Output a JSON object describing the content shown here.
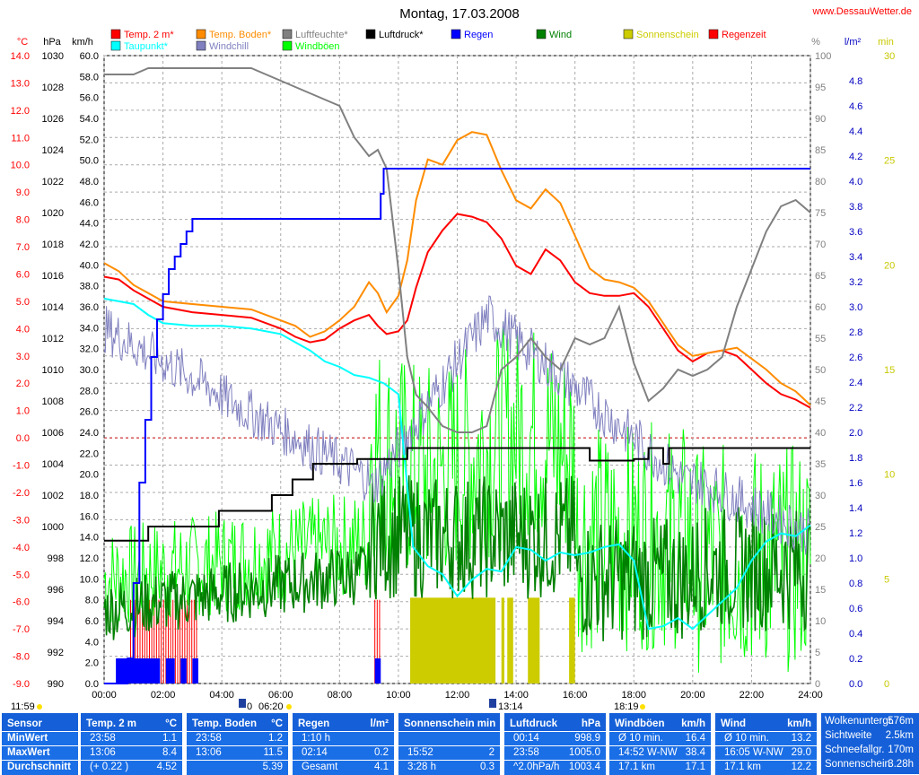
{
  "title": "Montag, 17.03.2008",
  "site": "www.DessauWetter.de",
  "legend": [
    {
      "label": "Temp. 2 m*",
      "color": "#ff0000"
    },
    {
      "label": "Temp. Boden*",
      "color": "#ff8c00"
    },
    {
      "label": "Luftfeuchte*",
      "color": "#808080"
    },
    {
      "label": "Taupunkt*",
      "color": "#00ffff"
    },
    {
      "label": "Windchill",
      "color": "#8080c0"
    },
    {
      "label": "Windböen",
      "color": "#00ff00"
    },
    {
      "label": "Luftdruck*",
      "color": "#000000"
    },
    {
      "label": "Regen",
      "color": "#0000ff"
    },
    {
      "label": "Wind",
      "color": "#008000"
    },
    {
      "label": "Sonnenschein",
      "color": "#cccc00"
    },
    {
      "label": "Regenzeit",
      "color": "#ff0000"
    }
  ],
  "axes_units": {
    "temp": "°C",
    "pressure": "hPa",
    "wind": "km/h",
    "humidity": "%",
    "rain": "l/m²",
    "sun": "min"
  },
  "markers": {
    "sunrise_top": "11:59",
    "moon_left": "0",
    "time1": "06:20",
    "time2": "13:14",
    "sunset": "18:19"
  },
  "chart_data": {
    "type": "line",
    "x_range": [
      0,
      24
    ],
    "x_ticks": [
      "00:00",
      "02:00",
      "04:00",
      "06:00",
      "08:00",
      "10:00",
      "12:00",
      "14:00",
      "16:00",
      "18:00",
      "20:00",
      "22:00",
      "24:00"
    ],
    "axes": {
      "temp": {
        "label": "°C",
        "range": [
          -9,
          14
        ],
        "step": 1
      },
      "pressure": {
        "label": "hPa",
        "range": [
          990,
          1030
        ],
        "step": 2
      },
      "wind": {
        "label": "km/h",
        "range": [
          0,
          60
        ],
        "step": 2
      },
      "humidity": {
        "label": "%",
        "range": [
          0,
          100
        ],
        "step": 5
      },
      "rain": {
        "label": "l/m²",
        "range": [
          0,
          5
        ],
        "step": 0.2
      },
      "sun": {
        "label": "min",
        "range": [
          0,
          30
        ],
        "step": 5
      }
    },
    "series": [
      {
        "name": "Temp. 2 m*",
        "axis": "temp",
        "color": "#ff0000",
        "x": [
          0,
          0.5,
          1,
          1.5,
          2,
          3,
          4,
          5,
          6,
          6.5,
          7,
          7.5,
          8,
          8.5,
          9,
          9.3,
          9.6,
          10,
          10.3,
          10.6,
          11,
          11.5,
          12,
          12.5,
          13,
          13.5,
          14,
          14.5,
          15,
          15.5,
          16,
          16.5,
          17,
          17.5,
          18,
          18.5,
          19,
          19.5,
          20,
          20.5,
          21,
          21.5,
          22,
          22.5,
          23,
          23.5,
          24
        ],
        "values": [
          5.9,
          5.8,
          5.4,
          5.1,
          4.8,
          4.6,
          4.5,
          4.4,
          4.0,
          3.7,
          3.5,
          3.6,
          4.0,
          4.3,
          4.5,
          4.1,
          3.8,
          3.9,
          4.3,
          5.5,
          6.8,
          7.6,
          8.2,
          8.1,
          7.9,
          7.3,
          6.3,
          6.0,
          6.9,
          6.5,
          5.7,
          5.3,
          5.2,
          5.2,
          5.3,
          4.8,
          4.0,
          3.2,
          2.8,
          3.1,
          3.2,
          3.0,
          2.5,
          2.0,
          1.6,
          1.4,
          1.1
        ]
      },
      {
        "name": "Temp. Boden*",
        "axis": "temp",
        "color": "#ff8c00",
        "x": [
          0,
          0.5,
          1,
          1.5,
          2,
          3,
          4,
          5,
          6,
          6.5,
          7,
          7.5,
          8,
          8.5,
          9,
          9.3,
          9.6,
          10,
          10.3,
          10.6,
          11,
          11.5,
          12,
          12.5,
          13,
          13.5,
          14,
          14.5,
          15,
          15.5,
          16,
          16.5,
          17,
          17.5,
          18,
          18.5,
          19,
          19.5,
          20,
          20.5,
          21,
          21.5,
          22,
          22.5,
          23,
          23.5,
          24
        ],
        "values": [
          6.4,
          6.1,
          5.6,
          5.3,
          5.0,
          4.9,
          4.8,
          4.7,
          4.3,
          4.1,
          3.7,
          3.9,
          4.3,
          4.8,
          5.7,
          5.3,
          4.6,
          5.2,
          6.5,
          8.7,
          10.2,
          10.0,
          10.9,
          11.2,
          11.1,
          9.8,
          8.7,
          8.4,
          9.1,
          8.6,
          7.4,
          6.2,
          5.8,
          5.7,
          5.5,
          5.0,
          4.2,
          3.4,
          3.0,
          3.1,
          3.2,
          3.3,
          2.9,
          2.5,
          2.0,
          1.7,
          1.2
        ]
      },
      {
        "name": "Taupunkt*",
        "axis": "temp",
        "color": "#00ffff",
        "x": [
          0,
          0.5,
          1,
          1.5,
          2,
          3,
          4,
          5,
          6,
          6.5,
          7,
          7.5,
          8,
          8.5,
          9,
          9.5,
          10,
          10.5,
          11,
          11.5,
          12,
          12.5,
          13,
          13.5,
          14,
          14.5,
          15,
          15.5,
          16,
          16.5,
          17,
          17.5,
          18,
          18.5,
          19,
          19.5,
          20,
          20.5,
          21,
          21.5,
          22,
          22.5,
          23,
          23.5,
          24
        ],
        "values": [
          5.1,
          5.0,
          4.9,
          4.5,
          4.2,
          4.1,
          4.1,
          4.0,
          3.8,
          3.5,
          3.2,
          2.8,
          2.6,
          2.3,
          2.2,
          2.0,
          1.6,
          -4.0,
          -4.7,
          -5.0,
          -5.8,
          -5.2,
          -4.8,
          -4.9,
          -4.0,
          -4.1,
          -4.5,
          -4.2,
          -4.3,
          -4.2,
          -4.0,
          -3.9,
          -4.5,
          -7.0,
          -6.9,
          -6.6,
          -7.0,
          -6.5,
          -6.0,
          -5.5,
          -4.5,
          -3.8,
          -3.5,
          -3.6,
          -3.2
        ]
      },
      {
        "name": "Luftfeuchte*",
        "axis": "humidity",
        "color": "#808080",
        "x": [
          0,
          0.5,
          1,
          1.5,
          2,
          3,
          4,
          5,
          5.5,
          6,
          6.5,
          7,
          7.5,
          8,
          8.5,
          9,
          9.3,
          9.6,
          10,
          10.3,
          10.6,
          11,
          11.5,
          12,
          12.5,
          13,
          13.5,
          14,
          14.5,
          15,
          15.5,
          16,
          16.5,
          17,
          17.5,
          18,
          18.5,
          19,
          19.5,
          20,
          20.5,
          21,
          21.5,
          22,
          22.5,
          23,
          23.5,
          24
        ],
        "values": [
          97,
          97,
          97,
          98,
          98,
          98,
          98,
          98,
          97,
          96,
          95,
          94,
          93,
          92,
          87,
          84,
          85,
          82,
          66,
          52,
          46,
          44,
          41,
          40,
          40,
          41,
          50,
          52,
          55,
          52,
          50,
          55,
          54,
          55,
          60,
          51,
          45,
          47,
          50,
          49,
          50,
          52,
          60,
          66,
          72,
          76,
          77,
          75
        ]
      },
      {
        "name": "Luftdruck*",
        "axis": "pressure",
        "color": "#000000",
        "x": [
          0,
          1.3,
          1.5,
          3.6,
          3.9,
          5.3,
          5.7,
          6.1,
          6.4,
          6.8,
          7.1,
          8.1,
          8.6,
          9.8,
          10.3,
          12,
          14,
          15.5,
          16.5,
          17,
          18,
          18.5,
          19,
          19.2,
          19.5,
          20,
          24
        ],
        "values": [
          999.1,
          999.1,
          1000,
          1000,
          1001,
          1001,
          1002,
          1002,
          1003,
          1003,
          1004,
          1004,
          1004.3,
          1004.3,
          1005,
          1005,
          1005,
          1005,
          1004.2,
          1004.2,
          1004.3,
          1005,
          1004,
          1005,
          1005,
          1005,
          1005
        ]
      },
      {
        "name": "Regen",
        "axis": "rain",
        "color": "#0000ff",
        "x": [
          0,
          0.5,
          0.8,
          1,
          1.2,
          1.4,
          1.6,
          1.8,
          2,
          2.2,
          2.4,
          2.6,
          2.8,
          3,
          3.2,
          9.3,
          9.4,
          9.5,
          9.6,
          24
        ],
        "values": [
          0,
          0,
          0.2,
          0.8,
          1.6,
          2.1,
          2.6,
          2.9,
          3.1,
          3.3,
          3.4,
          3.5,
          3.6,
          3.7,
          3.7,
          3.7,
          3.9,
          4.1,
          4.1,
          4.1
        ]
      }
    ],
    "sunshine_blocks": [
      [
        10.4,
        13.3
      ],
      [
        13.5,
        13.6
      ],
      [
        13.7,
        13.9
      ],
      [
        14.4,
        14.8
      ],
      [
        15.8,
        16.0
      ]
    ],
    "rain_time_blocks": [
      [
        0.9,
        3.2
      ],
      [
        9.2,
        9.4
      ]
    ],
    "zero_line": 0
  },
  "stats": {
    "columns": [
      {
        "title": "Sensor",
        "unit": "",
        "rows": [
          "MinWert",
          "MaxWert",
          "Durchschnitt"
        ]
      },
      {
        "title": "Temp. 2 m",
        "unit": "°C",
        "rows": [
          [
            "23:58",
            "1.1"
          ],
          [
            "13:06",
            "8.4"
          ],
          [
            "(+ 0.22 )",
            "4.52"
          ]
        ]
      },
      {
        "title": "Temp. Boden",
        "unit": "°C",
        "rows": [
          [
            "23:58",
            "1.2"
          ],
          [
            "13:06",
            "11.5"
          ],
          [
            "",
            "5.39"
          ]
        ]
      },
      {
        "title": "Regen",
        "unit": "l/m²",
        "rows": [
          [
            "1:10 h",
            ""
          ],
          [
            "02:14",
            "0.2"
          ],
          [
            "Gesamt",
            "4.1"
          ]
        ]
      },
      {
        "title": "Sonnenschein min",
        "unit": "",
        "rows": [
          [
            "",
            ""
          ],
          [
            "15:52",
            "2"
          ],
          [
            "3:28 h",
            "0.3"
          ]
        ]
      },
      {
        "title": "Luftdruck",
        "unit": "hPa",
        "rows": [
          [
            "00:14",
            "998.9"
          ],
          [
            "23:58",
            "1005.0"
          ],
          [
            "^2.0hPa/h",
            "1003.4"
          ]
        ]
      },
      {
        "title": "Windböen",
        "unit": "km/h",
        "rows": [
          [
            "Ø 10 min.",
            "16.4"
          ],
          [
            "14:52   W-NW",
            "38.4"
          ],
          [
            "17.1 km",
            "17.1"
          ]
        ]
      },
      {
        "title": "Wind",
        "unit": "km/h",
        "rows": [
          [
            "Ø 10 min.",
            "13.2"
          ],
          [
            "16:05   W-NW",
            "29.0"
          ],
          [
            "17.1 km",
            "12.2"
          ]
        ]
      },
      {
        "title": "",
        "unit": "",
        "rows": [
          [
            "Wolkenuntergr.",
            "576m"
          ],
          [
            "Sichtweite",
            "2.5km"
          ],
          [
            "Schneefallgr.",
            "170m"
          ],
          [
            "Sonnenschein",
            "3.28h"
          ]
        ]
      }
    ]
  }
}
